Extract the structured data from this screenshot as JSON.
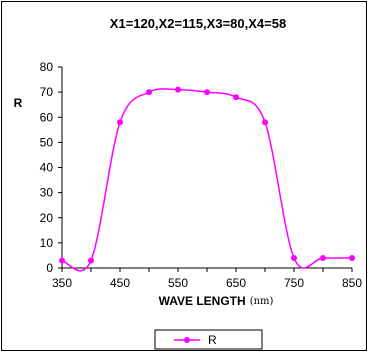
{
  "chart_data": {
    "type": "line",
    "title": "X1=120,X2=115,X3=80,X4=58",
    "xlabel": "WAVE LENGTH",
    "xlabel_unit": "(nm)",
    "ylabel": "R",
    "xlim": [
      350,
      850
    ],
    "ylim": [
      0,
      80
    ],
    "xticks": [
      350,
      450,
      550,
      650,
      750,
      850
    ],
    "yticks": [
      0,
      10,
      20,
      30,
      40,
      50,
      60,
      70,
      80
    ],
    "grid": false,
    "legend_position": "bottom-center",
    "series": [
      {
        "name": "R",
        "color": "#ff00ff",
        "x": [
          350,
          400,
          450,
          500,
          550,
          600,
          650,
          700,
          750,
          800,
          850
        ],
        "y": [
          3,
          3,
          58,
          70,
          71,
          70,
          68,
          58,
          4,
          4,
          4
        ]
      }
    ]
  }
}
